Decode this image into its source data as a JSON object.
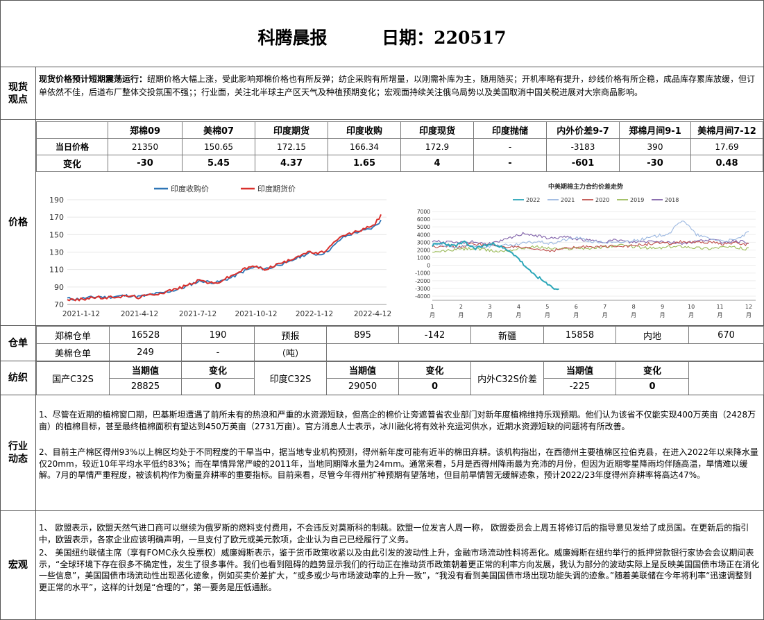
{
  "header": {
    "title": "科腾晨报",
    "date_label": "日期：220517"
  },
  "spot": {
    "label": "现货观点",
    "lead": "现货价格预计短期震荡运行：",
    "text": "纽期价格大幅上涨，受此影响郑棉价格也有所反弹；纺企采购有所增量，以刚需补库为主，随用随买；开机率略有提升，纱线价格有所企稳，成品库存累库放缓，但订单依然不佳，后道布厂整体交投氛围不强；；行业面，关注北半球主产区天气及种植预期变化；宏观面持续关注俄乌局势以及美国取消中国关税进展对大宗商品影响。"
  },
  "price": {
    "label": "价格",
    "headers": [
      "郑棉09",
      "美棉07",
      "印度期货",
      "印度收购",
      "印度现货",
      "印度抛储",
      "内外价差9-7",
      "郑棉月间9-1",
      "美棉月间7-12"
    ],
    "rows": [
      {
        "label": "当日价格",
        "cells": [
          "21350",
          "150.65",
          "172.15",
          "166.34",
          "172.9",
          "-",
          "-3183",
          "390",
          "17.69"
        ]
      },
      {
        "label": "变化",
        "cells": [
          "-30",
          "5.45",
          "4.37",
          "1.65",
          "4",
          "-",
          "-601",
          "-30",
          "0.48"
        ]
      }
    ]
  },
  "chart_data": [
    {
      "type": "line",
      "legend": [
        "印度收购价",
        "印度期货价"
      ],
      "colors": [
        "#2e75b6",
        "#d9302c"
      ],
      "x_ticks": [
        "2021-1-12",
        "2021-4-12",
        "2021-7-12",
        "2021-10-12",
        "2022-1-12",
        "2022-4-12"
      ],
      "ylim": [
        70,
        190
      ],
      "y_ticks": [
        70,
        90,
        110,
        130,
        150,
        170,
        190
      ],
      "series": [
        {
          "name": "印度收购价",
          "values": [
            77,
            76,
            77,
            78,
            79,
            78,
            79,
            80,
            80,
            79,
            80,
            82,
            83,
            85,
            87,
            90,
            94,
            97,
            96,
            95,
            98,
            101,
            106,
            110,
            113,
            111,
            112,
            116,
            117,
            122,
            126,
            129,
            127,
            130,
            137,
            146,
            150,
            153,
            155,
            158,
            166
          ]
        },
        {
          "name": "印度期货价",
          "values": [
            76,
            75,
            76,
            78,
            78,
            77,
            79,
            79,
            80,
            78,
            80,
            82,
            83,
            86,
            88,
            91,
            95,
            98,
            95,
            94,
            99,
            103,
            108,
            112,
            114,
            110,
            113,
            117,
            119,
            124,
            128,
            130,
            128,
            132,
            140,
            148,
            151,
            154,
            157,
            160,
            172
          ]
        }
      ]
    },
    {
      "type": "line",
      "title": "中美期棉主力合约价差走势",
      "legend": [
        "2022",
        "2021",
        "2020",
        "2019",
        "2018"
      ],
      "colors": [
        "#2aa6b8",
        "#9bb7e0",
        "#c0504d",
        "#9bbb59",
        "#7f5fa8"
      ],
      "ylim": [
        -4000,
        7000
      ],
      "y_ticks": [
        7000,
        6000,
        5000,
        4000,
        3000,
        2000,
        1000,
        0,
        -1000,
        -2000,
        -3000,
        -4000
      ],
      "x_ticks": [
        "1月",
        "2月",
        "3月",
        "4月",
        "5月",
        "6月",
        "7月",
        "8月",
        "9月",
        "10月",
        "11月",
        "12月"
      ],
      "series": [
        {
          "name": "2022",
          "values": [
            2600,
            2900,
            2500,
            3000,
            2200,
            2600,
            2800,
            2000,
            1200,
            -500,
            -1500,
            -2600,
            -3200
          ]
        },
        {
          "name": "2021",
          "values": [
            2800,
            2500,
            2300,
            2600,
            2400,
            2700,
            2500,
            2900,
            3100,
            2800,
            3300,
            3600,
            3100,
            3000,
            2900,
            3200,
            3400,
            3800,
            4200,
            6000,
            4000,
            3500,
            3200,
            3300,
            4300
          ]
        },
        {
          "name": "2020",
          "values": [
            2400,
            2600,
            2300,
            2800,
            2700,
            2500,
            2400,
            2200,
            2100,
            1900,
            2200,
            2300,
            2500,
            2400,
            2600,
            2500,
            2700,
            2900,
            2800,
            3100,
            2900,
            3000,
            2800,
            2900,
            2700
          ]
        },
        {
          "name": "2019",
          "values": [
            1600,
            1900,
            2100,
            2200,
            2000,
            1800,
            2000,
            2300,
            2400,
            2200,
            2100,
            2300,
            2200,
            2400,
            2600,
            2500,
            2300,
            2200,
            2400,
            2500,
            2300,
            2200,
            2400,
            2300,
            2100
          ]
        },
        {
          "name": "2018",
          "values": [
            3200,
            3000,
            2900,
            3100,
            2800,
            3000,
            3600,
            4200,
            3800,
            3500,
            3700,
            3400,
            3200,
            3100,
            3300,
            3000,
            3100,
            3200,
            3000,
            2900,
            3100,
            3400,
            3000,
            3200,
            3000
          ]
        }
      ]
    }
  ],
  "warehouse": {
    "label": "仓单",
    "row1": [
      "郑棉仓单",
      "16528",
      "190",
      "预报",
      "895",
      "-142",
      "新疆",
      "15858",
      "内地",
      "670"
    ],
    "row2": [
      "美棉仓单",
      "249",
      "-",
      "（吨）"
    ]
  },
  "yarn": {
    "label": "纺织",
    "name1": "国产C32S",
    "name2": "印度C32S",
    "name3": "内外C32S价差",
    "cur_label": "当期值",
    "chg_label": "变化",
    "v1": "28825",
    "c1": "0",
    "v2": "29050",
    "c2": "0",
    "v3": "-225",
    "c3": "0"
  },
  "industry": {
    "label": "行业动态",
    "p1": "1、尽管在近期的植棉窗口期，巴基斯坦遭遇了前所未有的热浪和严重的水资源短缺，但高企的棉价让旁遮普省农业部门对新年度植棉维持乐观预期。他们认为该省不仅能实现400万英亩（2428万亩）的植棉目标，甚至最终植棉面积有望达到450万英亩（2731万亩）。官方消息人士表示，冰川融化将有效补充运河供水，近期水资源短缺的问题将有所改善。",
    "p2": "2、目前主产棉区得州93%以上棉区均处于不同程度的干旱当中，据当地专业机构预测，得州新年度可能有近半的棉田弃耕。该机构指出，在西德州主要植棉区拉伯克县，在进入2022年以来降水量仅20mm，较近10年平均水平低约83%；而在旱情异常严峻的2011年，当地同期降水量为24mm。通常来看，5月是西得州降雨最为充沛的月份，但因为近期零星降雨均伴随高温，旱情难以缓解。7月的旱情严重程度，被该机构作为衡量弃耕率的重要指标。目前来看，尽管今年得州扩种预期有望落地，但目前旱情暂无缓解迹象，预计2022/23年度得州弃耕率将高达47%。"
  },
  "macro": {
    "label": "宏观",
    "p1": "1、 欧盟表示，欧盟天然气进口商可以继续为俄罗斯的燃料支付费用，不会违反对莫斯科的制裁。欧盟一位发言人周一称， 欧盟委员会上周五将修订后的指导意见发给了成员国。在更新后的指引中，欧盟表示，各家企业应该明确声明，一旦支付了欧元或美元款项，企业认为自己已经履行了义务。",
    "p2": "2、 美国纽约联储主席（享有FOMC永久投票权）威廉姆斯表示，鉴于货币政策收紧以及由此引发的波动性上升，金融市场流动性料将恶化。威廉姆斯在纽约举行的抵押贷款银行家协会会议期间表示，“全球环境下存在很多不确定性，发生了很多事件。我们也看到阻碍的趋势显示我们的行动正在推动货币政策朝着更正常的利率方向发展，我认为部分的波动实际上是反映美国国债市场正在消化一些信息”，美国国债市场流动性出现恶化迹象，例如买卖价差扩大，“或多或少与市场波动率的上升一致”，“我没有看到美国国债市场出现功能失调的迹象。”随着美联储在今年将利率“迅速调整到更正常的水平”，这样的计划是“合理的”，第一要务是压低通胀。"
  }
}
